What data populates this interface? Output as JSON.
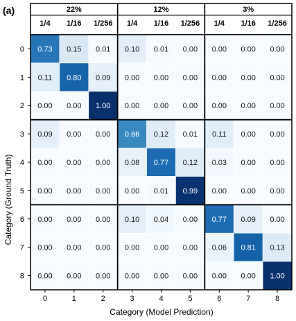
{
  "panel_label": "(a)",
  "chart_data": {
    "type": "heatmap",
    "title": "",
    "xlabel": "Category (Model Prediction)",
    "ylabel": "Category (Ground Truth)",
    "x_categories": [
      "0",
      "1",
      "2",
      "3",
      "4",
      "5",
      "6",
      "7",
      "8"
    ],
    "y_categories": [
      "0",
      "1",
      "2",
      "3",
      "4",
      "5",
      "6",
      "7",
      "8"
    ],
    "group_labels": [
      "22%",
      "12%",
      "3%"
    ],
    "column_labels": [
      "1/4",
      "1/16",
      "1/256",
      "1/4",
      "1/16",
      "1/256",
      "1/4",
      "1/16",
      "1/256"
    ],
    "value_range": [
      0,
      1
    ],
    "colormap": "Blues",
    "block_size": 3,
    "values": [
      [
        0.73,
        0.15,
        0.01,
        0.1,
        0.01,
        0.0,
        0.0,
        0.0,
        0.0
      ],
      [
        0.11,
        0.8,
        0.09,
        0.0,
        0.0,
        0.0,
        0.0,
        0.0,
        0.0
      ],
      [
        0.0,
        0.0,
        1.0,
        0.0,
        0.0,
        0.0,
        0.0,
        0.0,
        0.0
      ],
      [
        0.09,
        0.0,
        0.0,
        0.66,
        0.12,
        0.01,
        0.11,
        0.0,
        0.0
      ],
      [
        0.0,
        0.0,
        0.0,
        0.08,
        0.77,
        0.12,
        0.03,
        0.0,
        0.0
      ],
      [
        0.0,
        0.0,
        0.0,
        0.0,
        0.01,
        0.99,
        0.0,
        0.0,
        0.0
      ],
      [
        0.0,
        0.0,
        0.0,
        0.1,
        0.04,
        0.0,
        0.77,
        0.09,
        0.0
      ],
      [
        0.0,
        0.0,
        0.0,
        0.0,
        0.0,
        0.0,
        0.06,
        0.81,
        0.13
      ],
      [
        0.0,
        0.0,
        0.0,
        0.0,
        0.0,
        0.0,
        0.0,
        0.0,
        1.0
      ]
    ]
  }
}
